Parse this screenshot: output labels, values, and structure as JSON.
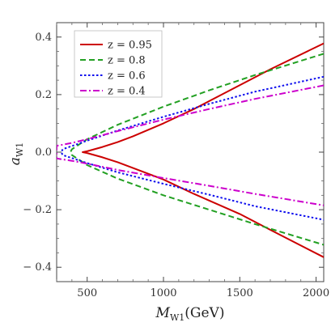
{
  "chart_data": {
    "type": "line",
    "xlabel": "M",
    "xlabel_sub": "W1",
    "xlabel_unit": "(GeV)",
    "ylabel": "a",
    "ylabel_sub": "W1",
    "xlim": [
      300,
      2050
    ],
    "ylim": [
      -0.45,
      0.45
    ],
    "xticks": [
      500,
      1000,
      1500,
      2000
    ],
    "yticks": [
      -0.4,
      -0.2,
      0.0,
      0.2,
      0.4
    ],
    "ytick_labels": [
      "− 0.4",
      "− 0.2",
      "0.0",
      "0.2",
      "0.4"
    ],
    "legend_position": "top-left",
    "grid": false,
    "series": [
      {
        "name": "z = 0.95",
        "color": "#cc0000",
        "dash": "solid",
        "upper": {
          "x": [
            470,
            500,
            600,
            700,
            800,
            1000,
            1200,
            1500,
            1700,
            2050
          ],
          "y": [
            0.0,
            0.003,
            0.018,
            0.035,
            0.055,
            0.1,
            0.15,
            0.233,
            0.288,
            0.378
          ]
        },
        "lower": {
          "x": [
            470,
            500,
            600,
            700,
            800,
            1000,
            1200,
            1500,
            1700,
            2050
          ],
          "y": [
            0.0,
            -0.003,
            -0.018,
            -0.035,
            -0.055,
            -0.095,
            -0.145,
            -0.215,
            -0.27,
            -0.365
          ]
        }
      },
      {
        "name": "z = 0.8",
        "color": "#22a022",
        "dash": "dashed",
        "upper": {
          "x": [
            390,
            400,
            500,
            700,
            1000,
            1300,
            1600,
            2050
          ],
          "y": [
            0.0,
            0.01,
            0.045,
            0.095,
            0.158,
            0.215,
            0.268,
            0.342
          ]
        },
        "lower": {
          "x": [
            390,
            400,
            500,
            700,
            1000,
            1300,
            1600,
            2050
          ],
          "y": [
            0.0,
            -0.01,
            -0.045,
            -0.092,
            -0.15,
            -0.2,
            -0.25,
            -0.322
          ]
        }
      },
      {
        "name": "z = 0.6",
        "color": "#1010ee",
        "dash": "dotted",
        "upper": {
          "x": [
            330,
            340,
            500,
            700,
            1000,
            1300,
            1600,
            2050
          ],
          "y": [
            0.0,
            0.01,
            0.04,
            0.075,
            0.123,
            0.168,
            0.21,
            0.262
          ]
        },
        "lower": {
          "x": [
            330,
            340,
            500,
            700,
            1000,
            1300,
            1600,
            2050
          ],
          "y": [
            0.0,
            -0.01,
            -0.038,
            -0.07,
            -0.11,
            -0.148,
            -0.188,
            -0.235
          ]
        }
      },
      {
        "name": "z = 0.4",
        "color": "#cc00cc",
        "dash": "dashdot",
        "upper": {
          "x": [
            300,
            400,
            500,
            700,
            1000,
            1300,
            1600,
            2050
          ],
          "y": [
            0.022,
            0.032,
            0.045,
            0.073,
            0.113,
            0.15,
            0.185,
            0.232
          ]
        },
        "lower": {
          "x": [
            300,
            400,
            500,
            700,
            1000,
            1300,
            1600,
            2050
          ],
          "y": [
            -0.022,
            -0.03,
            -0.04,
            -0.062,
            -0.09,
            -0.117,
            -0.145,
            -0.185
          ]
        }
      }
    ]
  }
}
